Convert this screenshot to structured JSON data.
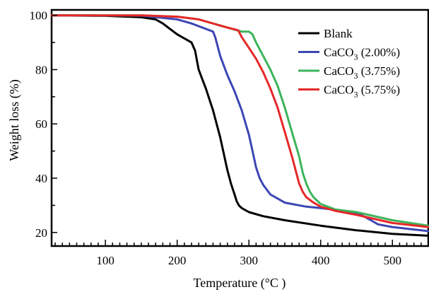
{
  "chart_data": {
    "type": "line",
    "title": "",
    "xlabel": "Temperature (°C )",
    "ylabel": "Weight loss (%)",
    "xlim": [
      25,
      550
    ],
    "ylim": [
      15,
      102
    ],
    "xticks": [
      100,
      200,
      300,
      400,
      500
    ],
    "yticks": [
      20,
      40,
      60,
      80,
      100
    ],
    "grid": false,
    "legend_position": "top-right",
    "series": [
      {
        "name": "Blank",
        "name_base": "Blank",
        "name_sub": "",
        "name_rest": "",
        "color": "#000000",
        "x": [
          25,
          100,
          150,
          170,
          180,
          190,
          200,
          210,
          220,
          225,
          230,
          240,
          250,
          260,
          270,
          275,
          280,
          283,
          286,
          290,
          300,
          320,
          350,
          400,
          450,
          500,
          550
        ],
        "y": [
          100,
          99.8,
          99.3,
          98.5,
          97,
          95,
          93,
          91.5,
          90,
          87,
          80,
          73,
          65,
          55,
          43,
          38,
          34,
          31.5,
          30,
          29,
          27.5,
          26,
          24.5,
          22.5,
          20.8,
          19.5,
          18.8
        ]
      },
      {
        "name": "CaCO3 (2.00%)",
        "name_base": "CaCO",
        "name_sub": "3",
        "name_rest": " (2.00%)",
        "color": "#3c46b4",
        "x": [
          25,
          150,
          200,
          220,
          240,
          250,
          253,
          260,
          270,
          280,
          290,
          300,
          305,
          310,
          315,
          320,
          330,
          350,
          380,
          400,
          430,
          450,
          460,
          470,
          480,
          500,
          550
        ],
        "y": [
          100,
          99.9,
          98.5,
          97,
          95,
          94,
          92,
          85,
          78,
          72,
          65,
          56,
          50,
          44,
          40,
          37.5,
          34,
          31,
          29.5,
          29,
          28,
          27,
          26,
          24.5,
          23,
          22,
          20.5
        ]
      },
      {
        "name": "CaCO3 (3.75%)",
        "name_base": "CaCO",
        "name_sub": "3",
        "name_rest": " (3.75%)",
        "color": "#3cb45a",
        "x": [
          25,
          150,
          200,
          230,
          250,
          270,
          290,
          300,
          305,
          310,
          320,
          330,
          340,
          350,
          360,
          370,
          375,
          380,
          385,
          390,
          400,
          420,
          450,
          500,
          550
        ],
        "y": [
          100,
          100,
          99.5,
          98.5,
          97,
          95.5,
          94,
          94,
          93,
          90,
          85,
          80,
          74,
          66,
          57,
          48,
          42,
          38,
          35,
          33,
          30.5,
          28.5,
          27.5,
          24.5,
          22.5
        ]
      },
      {
        "name": "CaCO3 (5.75%)",
        "name_base": "CaCO",
        "name_sub": "3",
        "name_rest": " (5.75%)",
        "color": "#e62828",
        "x": [
          25,
          150,
          200,
          230,
          250,
          270,
          285,
          290,
          300,
          310,
          320,
          330,
          340,
          350,
          360,
          365,
          370,
          375,
          380,
          390,
          400,
          420,
          450,
          500,
          550
        ],
        "y": [
          100,
          100,
          99.5,
          98.5,
          97,
          95.5,
          94.5,
          92,
          88,
          84,
          79,
          73,
          66,
          57,
          48,
          43,
          38,
          35,
          33,
          31,
          29.5,
          28,
          26.5,
          23.5,
          22
        ]
      }
    ]
  }
}
